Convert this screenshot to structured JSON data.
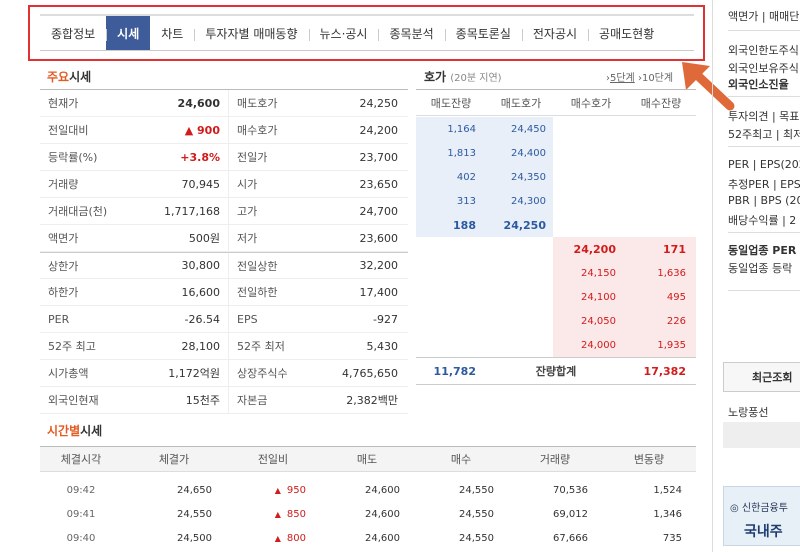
{
  "tabs": [
    {
      "label": "종합정보",
      "active": false
    },
    {
      "label": "시세",
      "active": true
    },
    {
      "label": "차트",
      "active": false
    },
    {
      "label": "투자자별 매매동향",
      "active": false
    },
    {
      "label": "뉴스·공시",
      "active": false
    },
    {
      "label": "종목분석",
      "active": false
    },
    {
      "label": "종목토론실",
      "active": false
    },
    {
      "label": "전자공시",
      "active": false
    },
    {
      "label": "공매도현황",
      "active": false
    }
  ],
  "main": {
    "title_accent": "주요",
    "title_rest": "시세",
    "rows": [
      [
        "현재가",
        "24,600",
        "매도호가",
        "24,250"
      ],
      [
        "전일대비",
        "▲ 900",
        "매수호가",
        "24,200"
      ],
      [
        "등락률(%)",
        "+3.8%",
        "전일가",
        "23,700"
      ],
      [
        "거래량",
        "70,945",
        "시가",
        "23,650"
      ],
      [
        "거래대금(천)",
        "1,717,168",
        "고가",
        "24,700"
      ],
      [
        "액면가",
        "500원",
        "저가",
        "23,600"
      ],
      [
        "상한가",
        "30,800",
        "전일상한",
        "32,200"
      ],
      [
        "하한가",
        "16,600",
        "전일하한",
        "17,400"
      ],
      [
        "PER",
        "-26.54",
        "EPS",
        "-927"
      ],
      [
        "52주 최고",
        "28,100",
        "52주 최저",
        "5,430"
      ],
      [
        "시가총액",
        "1,172억원",
        "상장주식수",
        "4,765,650"
      ],
      [
        "외국인현재",
        "15천주",
        "자본금",
        "2,382백만"
      ]
    ]
  },
  "orderbook": {
    "title": "호가",
    "delay": "(20분 지연)",
    "step5": "5단계",
    "step10": "10단계",
    "headers": [
      "매도잔량",
      "매도호가",
      "매수호가",
      "매수잔량"
    ],
    "asks": [
      [
        "1,164",
        "24,450"
      ],
      [
        "1,813",
        "24,400"
      ],
      [
        "402",
        "24,350"
      ],
      [
        "313",
        "24,300"
      ],
      [
        "188",
        "24,250"
      ]
    ],
    "bids": [
      [
        "24,200",
        "171"
      ],
      [
        "24,150",
        "1,636"
      ],
      [
        "24,100",
        "495"
      ],
      [
        "24,050",
        "226"
      ],
      [
        "24,000",
        "1,935"
      ]
    ],
    "total_ask": "11,782",
    "total_label": "잔량합계",
    "total_bid": "17,382"
  },
  "time": {
    "title_accent": "시간별",
    "title_rest": "시세",
    "headers": [
      "체결시각",
      "체결가",
      "전일비",
      "매도",
      "매수",
      "거래량",
      "변동량"
    ],
    "rows": [
      [
        "09:42",
        "24,650",
        "950",
        "24,600",
        "24,550",
        "70,536",
        "1,524"
      ],
      [
        "09:41",
        "24,550",
        "850",
        "24,600",
        "24,550",
        "69,012",
        "1,346"
      ],
      [
        "09:40",
        "24,500",
        "800",
        "24,600",
        "24,550",
        "67,666",
        "735"
      ]
    ]
  },
  "right_panel": {
    "lines": [
      "액면가 | 매매단",
      "외국인한도주식",
      "외국인보유주식",
      "외국인소진율",
      "투자의견 | 목표",
      "52주최고 | 최저",
      "PER | EPS(202",
      "추정PER | EPS",
      "PBR | BPS (20",
      "배당수익률 | 2",
      "동일업종 PER",
      "동일업종 등락"
    ],
    "recent_label": "최근조회",
    "recent_item": "노랑풍선",
    "ad_line1": "신한금융투",
    "ad_line2": "국내주"
  },
  "colors": {
    "tab_active": "#3e5c9a",
    "accent": "#e35b21",
    "up": "#d21b1b",
    "ask_blue": "#2c5aa0",
    "highlight": "#e03232"
  }
}
